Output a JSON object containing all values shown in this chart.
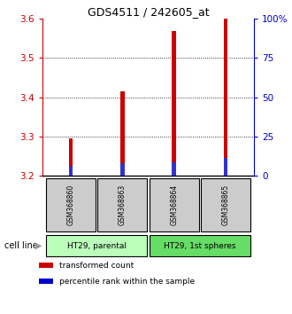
{
  "title": "GDS4511 / 242605_at",
  "samples": [
    "GSM368860",
    "GSM368863",
    "GSM368864",
    "GSM368865"
  ],
  "red_values": [
    3.295,
    3.415,
    3.57,
    3.6
  ],
  "blue_values": [
    3.225,
    3.232,
    3.235,
    3.245
  ],
  "red_base": 3.2,
  "ylim_left": [
    3.2,
    3.6
  ],
  "ylim_right": [
    0,
    100
  ],
  "yticks_left": [
    3.2,
    3.3,
    3.4,
    3.5,
    3.6
  ],
  "yticks_right": [
    0,
    25,
    50,
    75,
    100
  ],
  "ytick_labels_left": [
    "3.2",
    "3.3",
    "3.4",
    "3.5",
    "3.6"
  ],
  "ytick_labels_right": [
    "0",
    "25",
    "50",
    "75",
    "100%"
  ],
  "cell_groups": [
    {
      "label": "HT29, parental",
      "indices": [
        0,
        1
      ],
      "color": "#bbffbb"
    },
    {
      "label": "HT29, 1st spheres",
      "indices": [
        2,
        3
      ],
      "color": "#66dd66"
    }
  ],
  "cell_line_label": "cell line",
  "legend": [
    {
      "label": "transformed count",
      "color": "#cc0000"
    },
    {
      "label": "percentile rank within the sample",
      "color": "#0000cc"
    }
  ],
  "bar_width": 0.08,
  "red_color": "#cc0000",
  "blue_color": "#3333cc",
  "bg_color": "#ffffff",
  "sample_box_color": "#cccccc",
  "left_axis_color": "#cc0000",
  "right_axis_color": "#0000cc"
}
